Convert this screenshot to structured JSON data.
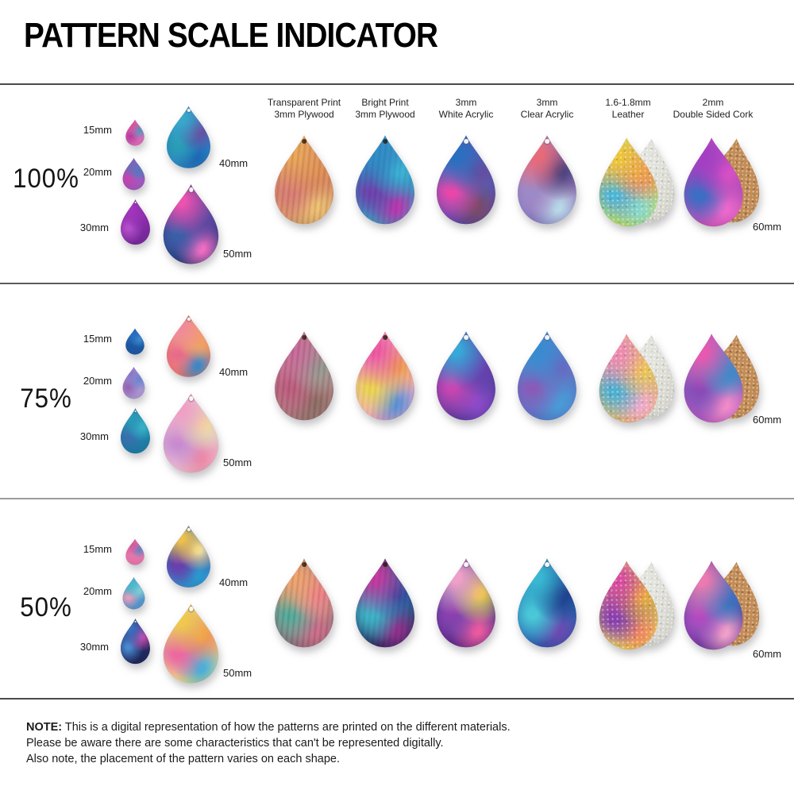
{
  "title": "PATTERN SCALE INDICATOR",
  "size_labels": {
    "s15": "15mm",
    "s20": "20mm",
    "s30": "30mm",
    "s40": "40mm",
    "s50": "50mm",
    "s60": "60mm"
  },
  "columns": [
    {
      "key": "transparent-print-plywood",
      "line1": "Transparent Print",
      "line2": "3mm Plywood",
      "hole": "dark",
      "texture": "wood",
      "pair": null
    },
    {
      "key": "bright-print-plywood",
      "line1": "Bright Print",
      "line2": "3mm Plywood",
      "hole": "dark",
      "texture": "wood-light",
      "pair": null
    },
    {
      "key": "white-acrylic",
      "line1": "3mm",
      "line2": "White Acrylic",
      "hole": "light",
      "texture": null,
      "pair": null
    },
    {
      "key": "clear-acrylic",
      "line1": "3mm",
      "line2": "Clear Acrylic",
      "hole": "light",
      "texture": null,
      "pair": null
    },
    {
      "key": "leather",
      "line1": "1.6-1.8mm",
      "line2": "Leather",
      "hole": "none",
      "texture": "leather",
      "pair": "leather"
    },
    {
      "key": "double-sided-cork",
      "line1": "2mm",
      "line2": "Double Sided Cork",
      "hole": "none",
      "texture": null,
      "pair": "cork"
    }
  ],
  "pair_backs": {
    "leather": "#d9d9d2",
    "cork": "#c28c58"
  },
  "rows": [
    {
      "scale_label": "100%",
      "small_drops": [
        {
          "size": "15mm",
          "colors": [
            "#d4559e",
            "#4a9ec4",
            "#c13fa6",
            "#e070bc"
          ]
        },
        {
          "size": "20mm",
          "colors": [
            "#6f6ab8",
            "#4f7cc0",
            "#c945b2",
            "#a85ac4"
          ]
        },
        {
          "size": "30mm",
          "colors": [
            "#a435bc",
            "#8e2fae",
            "#b44ecb",
            "#7c2aa0"
          ]
        },
        {
          "size": "40mm",
          "colors": [
            "#38a8c9",
            "#6a4a9e",
            "#2a9db5",
            "#1f6ab5",
            "#2e86c8"
          ]
        },
        {
          "size": "50mm",
          "colors": [
            "#ec52b0",
            "#5a4aa0",
            "#3a5fa8",
            "#f06cc2",
            "#8a3fae",
            "#2a3f7e"
          ]
        }
      ],
      "materials": [
        [
          "#e8a456",
          "#dd8a54",
          "#d87a72",
          "#ecc070",
          "#cc6a6e",
          "#d89a6a"
        ],
        [
          "#2a8ac8",
          "#38b5d8",
          "#6a3fae",
          "#b535b0",
          "#2a4fa0",
          "#35a0c8"
        ],
        [
          "#2a6fc0",
          "#6a4a9e",
          "#ec45aa",
          "#7a4a6a",
          "#3a8ac8",
          "#5a4aae"
        ],
        [
          "#e86a78",
          "#3f3f7e",
          "#9a8ac8",
          "#b8d8e8",
          "#e88ab4",
          "#8a7ac0"
        ],
        [
          "#ecc438",
          "#ec9a4c",
          "#4ab5d8",
          "#8ad8c8",
          "#dc68a0",
          "#c4dc58"
        ],
        [
          "#a43fc4",
          "#dc52c4",
          "#3a6fc4",
          "#ec68cc",
          "#6a3fae",
          "#c452b8"
        ]
      ]
    },
    {
      "scale_label": "75%",
      "small_drops": [
        {
          "size": "15mm",
          "colors": [
            "#2a70c0",
            "#3c8ed2",
            "#1f5aa8"
          ]
        },
        {
          "size": "20mm",
          "colors": [
            "#8a7ac8",
            "#6a8ad0",
            "#9a68b8",
            "#b09ad8"
          ]
        },
        {
          "size": "30mm",
          "colors": [
            "#2a9ab8",
            "#38b5c8",
            "#3a70b0",
            "#207ea8"
          ]
        },
        {
          "size": "40mm",
          "colors": [
            "#f08a9a",
            "#f0a066",
            "#e86a8a",
            "#3a8ac8",
            "#ecc068",
            "#f07c70"
          ]
        },
        {
          "size": "50mm",
          "colors": [
            "#f0a0c4",
            "#f0d8a0",
            "#c88ad0",
            "#ec8aa8",
            "#b0c8e8",
            "#f4c4d4"
          ]
        }
      ],
      "materials": [
        [
          "#c4669a",
          "#8a9a90",
          "#b8587e",
          "#8a6a64",
          "#dc8aa0",
          "#a87a80"
        ],
        [
          "#ee57a2",
          "#f0a050",
          "#ecd452",
          "#5a90d8",
          "#d8c0ec",
          "#f2aac6"
        ],
        [
          "#38a8d8",
          "#6a3fae",
          "#c845b2",
          "#8a4ac8",
          "#4a58b0",
          "#5a3a9e"
        ],
        [
          "#3a8ad0",
          "#6a68c0",
          "#8a5ab8",
          "#4a9ad8",
          "#38b0d8",
          "#5a78c8"
        ],
        [
          "#ec8ab0",
          "#ecc84c",
          "#4ab0d0",
          "#f0a8c8",
          "#b098d8",
          "#e8b86a"
        ],
        [
          "#e858b0",
          "#3a8ac8",
          "#8a4ab8",
          "#f08ac8",
          "#38a0c8",
          "#b05ac0"
        ]
      ]
    },
    {
      "scale_label": "50%",
      "small_drops": [
        {
          "size": "15mm",
          "colors": [
            "#d85a9e",
            "#5a8ac8",
            "#ec7ab0"
          ]
        },
        {
          "size": "20mm",
          "colors": [
            "#4ab8c8",
            "#8ad0d8",
            "#eca0c0",
            "#5a9ad0"
          ]
        },
        {
          "size": "30mm",
          "colors": [
            "#3a6fc0",
            "#c84aae",
            "#4a8ad0",
            "#20295e"
          ]
        },
        {
          "size": "40mm",
          "colors": [
            "#ecc04c",
            "#f0e0a0",
            "#6a3fae",
            "#2a9ad0",
            "#4a2a7a",
            "#3a8ad0"
          ]
        },
        {
          "size": "50mm",
          "colors": [
            "#f0c84c",
            "#f09a4c",
            "#ec68a0",
            "#4ab0d8",
            "#b86ad0",
            "#f0e08a"
          ]
        }
      ],
      "materials": [
        [
          "#eca06c",
          "#ec7a8a",
          "#4aa89e",
          "#c8688a",
          "#ecc08a",
          "#8c6a7a"
        ],
        [
          "#c035a0",
          "#2a4a9e",
          "#38b0c8",
          "#8a2a8a",
          "#4ac8d8",
          "#20295e"
        ],
        [
          "#f0a0c8",
          "#ecc84c",
          "#8a3fae",
          "#ec5a9e",
          "#3a8ac8",
          "#5a2a8a"
        ],
        [
          "#38b8d0",
          "#1f3a8a",
          "#4ac8d8",
          "#6a4ab0",
          "#2a8ac0",
          "#2a5aae"
        ],
        [
          "#d84a9e",
          "#ecb038",
          "#8a3fae",
          "#f08a5a",
          "#5a3a9e",
          "#ecd85a"
        ],
        [
          "#ec7ab0",
          "#3a6fc0",
          "#b04ac0",
          "#f0a0c8",
          "#38a0c8",
          "#6a3a9e"
        ]
      ]
    }
  ],
  "note": {
    "label": "NOTE:",
    "line1": "This is a digital representation of how the patterns are printed on the different materials.",
    "line2": "Please be aware there are some characteristics that can't be represented digitally.",
    "line3": "Also note, the placement of the pattern varies on each shape."
  }
}
